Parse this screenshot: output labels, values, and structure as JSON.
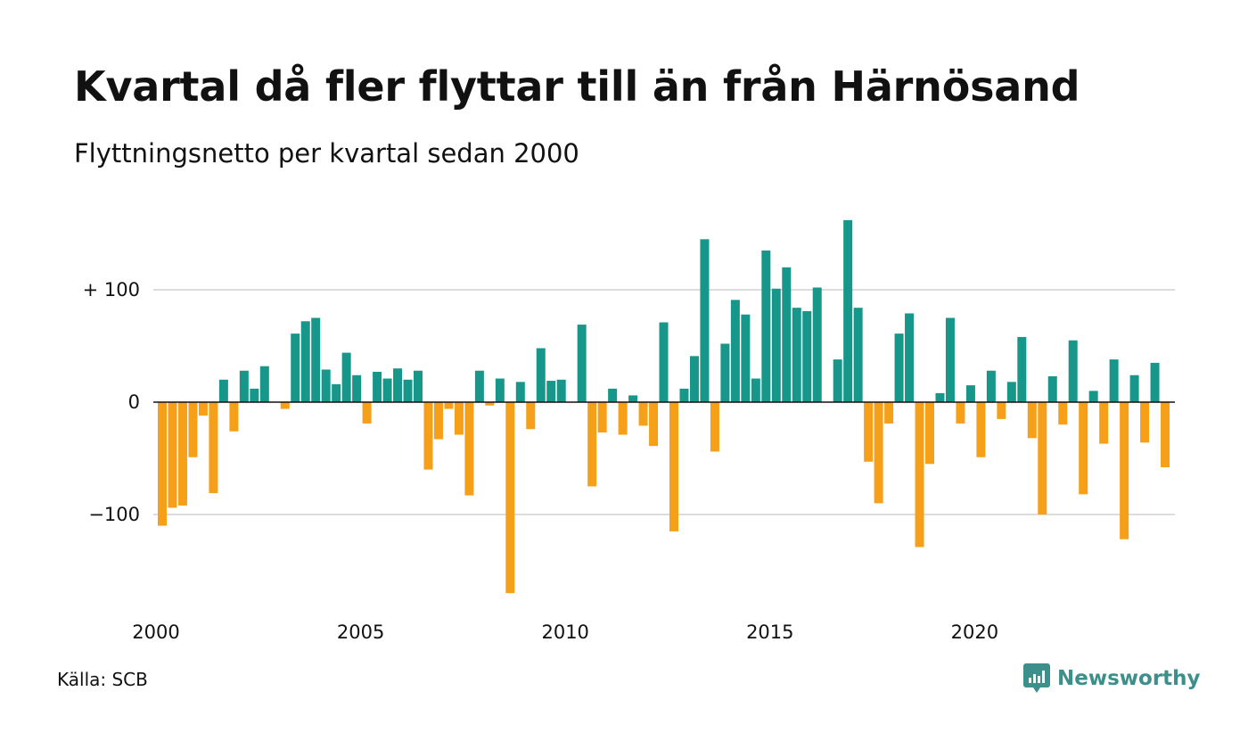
{
  "header": {
    "title": "Kvartal då fler flyttar till än från Härnösand",
    "subtitle": "Flyttningsnetto per kvartal sedan 2000"
  },
  "footer": {
    "source": "Källa: SCB",
    "brand": "Newsworthy"
  },
  "colors": {
    "positive": "#17978a",
    "negative": "#f6a01a",
    "grid": "#dcdcdc",
    "zero_line": "#111111",
    "brand": "#3c8f8a"
  },
  "icons": {
    "brand_logo": "newsworthy-chart-bubble-icon"
  },
  "chart_data": {
    "type": "bar",
    "y_tick_labels": [
      "+ 100",
      "0",
      "−100"
    ],
    "y_ticks": [
      100,
      0,
      -100
    ],
    "x_tick_labels": [
      "2000",
      "2005",
      "2010",
      "2015",
      "2020"
    ],
    "x_ticks": [
      2000,
      2005,
      2010,
      2015,
      2020
    ],
    "ylim": [
      -180,
      170
    ],
    "grid": true,
    "legend": "none",
    "start_year": 2000,
    "values": [
      -110,
      -94,
      -92,
      -49,
      -12,
      -81,
      20,
      -26,
      28,
      12,
      32,
      0,
      -6,
      61,
      72,
      75,
      29,
      16,
      44,
      24,
      -19,
      27,
      21,
      30,
      20,
      28,
      -60,
      -33,
      -6,
      -29,
      -83,
      28,
      -3,
      21,
      -170,
      18,
      -24,
      48,
      19,
      20,
      0,
      69,
      -75,
      -27,
      12,
      -29,
      6,
      -21,
      -39,
      71,
      -115,
      12,
      41,
      145,
      -44,
      52,
      91,
      78,
      21,
      135,
      101,
      120,
      84,
      81,
      102,
      0,
      38,
      162,
      84,
      -53,
      -90,
      -19,
      61,
      79,
      -129,
      -55,
      8,
      75,
      -19,
      15,
      -49,
      28,
      -15,
      18,
      58,
      -32,
      -100,
      23,
      -20,
      55,
      -82,
      10,
      -37,
      38,
      -122,
      24,
      -36,
      35,
      -58
    ]
  }
}
